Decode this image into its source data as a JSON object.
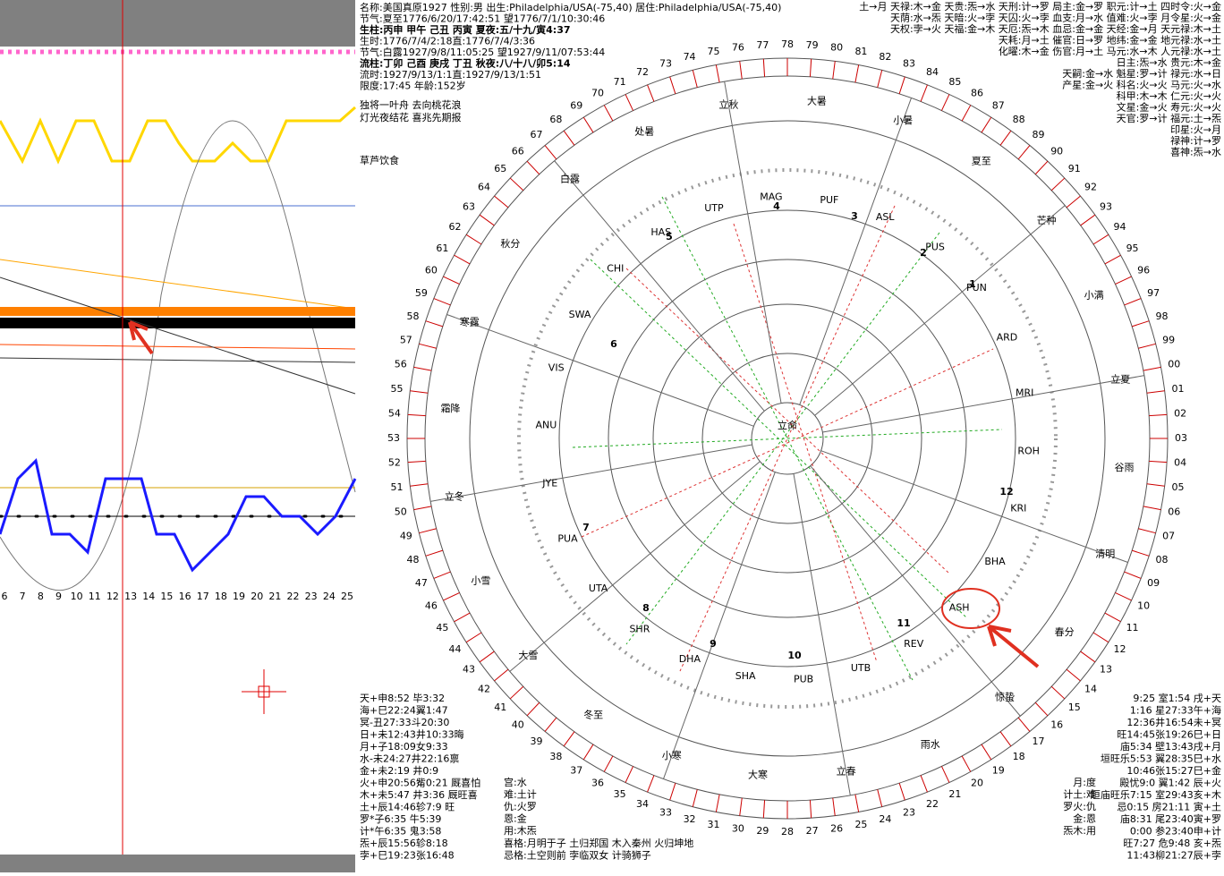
{
  "header": {
    "lines": [
      "名称:美国真原1927 性别:男 出生:Philadelphia/USA(-75,40) 居住:Philadelphia/USA(-75,40)",
      "节气:夏至1776/6/20/17:42:51 望1776/7/1/10:30:46",
      "生柱:丙申 甲午 己丑 丙寅 夏夜:五/十九/寅4:37",
      "生时:1776/7/4/2:18直:1776/7/4/3:36",
      "节气:白露1927/9/8/11:05:25 望1927/9/11/07:53:44",
      "流柱:丁卯 己酉 庚戌 丁丑 秋夜:八/十八/卯5:14",
      "流时:1927/9/13/1:1直:1927/9/13/1:51",
      "限度:17:45 年龄:152岁"
    ],
    "poem": [
      "独将一叶舟 去向桃花浪",
      "灯光夜结花 喜兆先期报"
    ],
    "note": "草芦饮食",
    "right": [
      "土→月 天禄:木→金 天贵:炁→水 天刑:计→罗 局主:金→罗 职元:计→土 四时令:火→金",
      "天荫:水→炁 天暗:火→孛 天囚:火→孛 血支:月→水 值难:火→孛 月令星:火→金",
      "天权:孛→火 天福:金→木 天厄:炁→木 血忌:金→金 天经:金→月 天元禄:木→土",
      "天耗:月→土 催官:日→罗 地纬:金→金 地元禄:水→土",
      "化曜:木→金 伤官:月→土 马元:水→木 人元禄:水→土",
      "日主:炁→水 贵元:木→金",
      "天嗣:金→水 魁星:罗→计 禄元:水→日",
      "产星:金→火 科名:火→火 马元:火→水",
      "科甲:木→木 仁元:火→火",
      "文星:金→火 寿元:火→火",
      "天官:罗→计 福元:土→炁",
      "印星:火→月",
      "禄神:计→罗",
      "喜神:炁→水"
    ]
  },
  "left_panel": {
    "x_labels": [
      "6",
      "7",
      "8",
      "9",
      "10",
      "11",
      "12",
      "13",
      "14",
      "15",
      "16",
      "17",
      "18",
      "19",
      "20",
      "21",
      "22",
      "23",
      "24",
      "25"
    ]
  },
  "wheel": {
    "center": "立命",
    "houses": [
      "1",
      "2",
      "3",
      "4",
      "5",
      "6",
      "7",
      "8",
      "9",
      "10",
      "11",
      "12"
    ],
    "rim": [
      "00",
      "01",
      "02",
      "03",
      "04",
      "05",
      "06",
      "07",
      "08",
      "09",
      "10",
      "11",
      "12",
      "13",
      "14",
      "15",
      "16",
      "17",
      "18",
      "19",
      "20",
      "21",
      "22",
      "23",
      "24",
      "25",
      "26",
      "27",
      "28",
      "29",
      "30",
      "31",
      "32",
      "33",
      "34",
      "35",
      "36",
      "37",
      "38",
      "39",
      "40",
      "41",
      "42",
      "43",
      "44",
      "45",
      "46",
      "47",
      "48",
      "49",
      "50",
      "51",
      "52",
      "53",
      "54",
      "55",
      "56",
      "57",
      "58",
      "59",
      "60",
      "61",
      "62",
      "63",
      "64",
      "65",
      "66",
      "67",
      "68",
      "69",
      "70",
      "71",
      "72",
      "73",
      "74",
      "75",
      "76",
      "77",
      "78",
      "79",
      "80",
      "81",
      "82",
      "83",
      "84",
      "85",
      "86",
      "87",
      "88",
      "89",
      "90",
      "91",
      "92",
      "93",
      "94",
      "95",
      "96",
      "97",
      "98",
      "99"
    ],
    "terms": [
      "立秋",
      "大暑",
      "小暑",
      "夏至",
      "芒种",
      "小满",
      "立夏",
      "谷雨",
      "清明",
      "春分",
      "惊蛰",
      "雨水",
      "立春",
      "大寒",
      "小寒",
      "冬至",
      "大雪",
      "小雪",
      "立冬",
      "霜降",
      "寒露",
      "秋分",
      "白露",
      "处暑"
    ],
    "markers": [
      "PUF",
      "ASL",
      "PUS",
      "PUN",
      "ARD",
      "MRI",
      "ROH",
      "KRI",
      "BHA",
      "ASH",
      "REV",
      "UTB",
      "PUB",
      "SHA",
      "DHA",
      "SHR",
      "UTA",
      "PUA",
      "JYE",
      "ANU",
      "VIS",
      "SWA",
      "CHI",
      "HAS",
      "UTP",
      "MAG"
    ]
  },
  "footer": {
    "planets": [
      "天+申8:52 毕3:32",
      "海+巳22:24翼1:47",
      "冥-丑27:33斗20:30",
      "日+未12:43井10:33晦",
      "月+子18:09女9:33",
      "水-未24:27井22:16禀",
      "金+未2:19 井0:9",
      "火+申20:56觜0:21 厩喜怕",
      "木+未5:47 井3:36 厩旺喜",
      "土+辰14:46轸7:9 旺",
      "罗*子6:35 牛5:39",
      "计*午6:35 鬼3:58",
      "炁+辰15:56轸8:18",
      "孛+巳19:23张16:48"
    ],
    "palace": [
      "宫:水",
      "难:土计",
      "仇:火罗",
      "恩:金",
      "用:木炁"
    ],
    "patterns": [
      "喜格:月明于子 土归郑国 木入秦州 火归坤地",
      "忌格:土空则前 孛临双女 计骑狮子"
    ],
    "right": [
      "9:25 室1:54 戌+天",
      "1:16 星27:33午+海",
      "12:36井16:54未+冥",
      "旺14:45张19:26巳+日",
      "庙5:34 壁13:43戌+月",
      "垣旺乐5:53 翼28:35巳+水",
      "10:46张15:27巳+金",
      "殿忧9:0 翼1:42 辰+火",
      "垣庙旺乐7:15 室29:43亥+木",
      "忌0:15 房21:11 寅+土",
      "庙8:31 尾23:40寅+罗",
      "0:00 参23:40申+计",
      "旺7:27 危9:48 亥+炁",
      "11:43柳21:27辰+孛"
    ],
    "right_mid": [
      "月:度",
      "计土:难",
      "罗火:仇",
      "金:恩",
      "炁木:用"
    ]
  }
}
